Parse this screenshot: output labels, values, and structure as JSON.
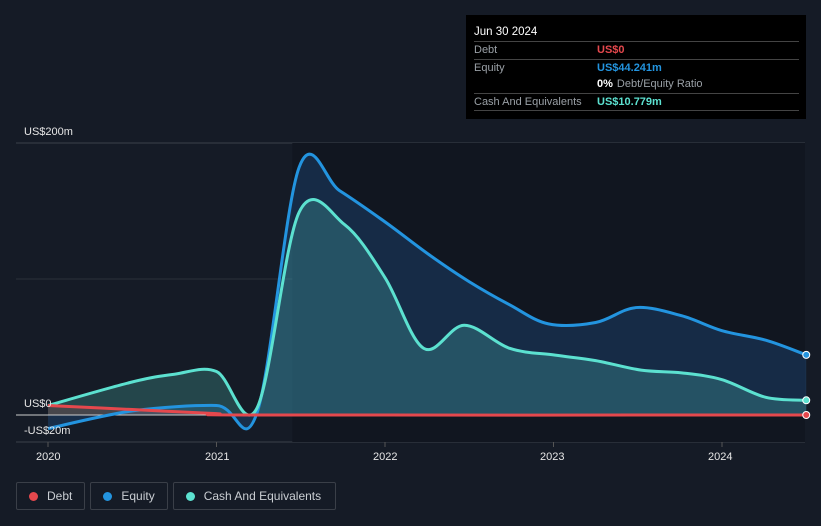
{
  "tooltip": {
    "date": "Jun 30 2024",
    "debt_label": "Debt",
    "debt_value": "US$0",
    "equity_label": "Equity",
    "equity_value": "US$44.241m",
    "ratio_value": "0%",
    "ratio_label": "Debt/Equity Ratio",
    "cash_label": "Cash And Equivalents",
    "cash_value": "US$10.779m"
  },
  "legend": [
    {
      "label": "Debt"
    },
    {
      "label": "Equity"
    },
    {
      "label": "Cash And Equivalents"
    }
  ],
  "colors": {
    "debt": "#e5484d",
    "equity": "#2394df",
    "cash": "#5ce1d0"
  },
  "chart_data": {
    "type": "area",
    "title": "",
    "xlabel": "",
    "ylabel": "",
    "ylim": [
      -20,
      200
    ],
    "y_tick_labels": [
      "US$200m",
      "US$0",
      "-US$20m"
    ],
    "x_tick_labels": [
      "2020",
      "2021",
      "2022",
      "2023",
      "2024"
    ],
    "x_ticks": [
      2020,
      2021,
      2022,
      2023,
      2024
    ],
    "xlim": [
      2020,
      2024.5
    ],
    "series": [
      {
        "name": "Debt",
        "x": [
          2020,
          2020.5,
          2021,
          2021.25,
          2024.5
        ],
        "values": [
          7,
          4,
          1,
          0,
          0
        ]
      },
      {
        "name": "Equity",
        "x": [
          2020,
          2020.5,
          2021,
          2021.24,
          2021.49,
          2021.73,
          2022,
          2022.26,
          2022.5,
          2022.74,
          2022.97,
          2023.25,
          2023.49,
          2023.76,
          2024,
          2024.26,
          2024.5
        ],
        "values": [
          -10,
          3,
          7,
          1.5,
          182,
          165,
          142,
          118,
          98,
          81,
          67,
          68,
          79,
          73,
          62,
          55,
          44.2
        ]
      },
      {
        "name": "Cash And Equivalents",
        "x": [
          2020,
          2020.49,
          2020.75,
          2021,
          2021.24,
          2021.49,
          2021.76,
          2022,
          2022.23,
          2022.47,
          2022.74,
          2023.01,
          2023.25,
          2023.52,
          2023.76,
          2024,
          2024.26,
          2024.5
        ],
        "values": [
          7,
          24,
          30,
          32,
          5,
          149,
          140,
          101,
          49,
          66,
          49,
          44,
          40,
          33,
          31,
          26,
          13,
          10.8
        ]
      }
    ]
  }
}
